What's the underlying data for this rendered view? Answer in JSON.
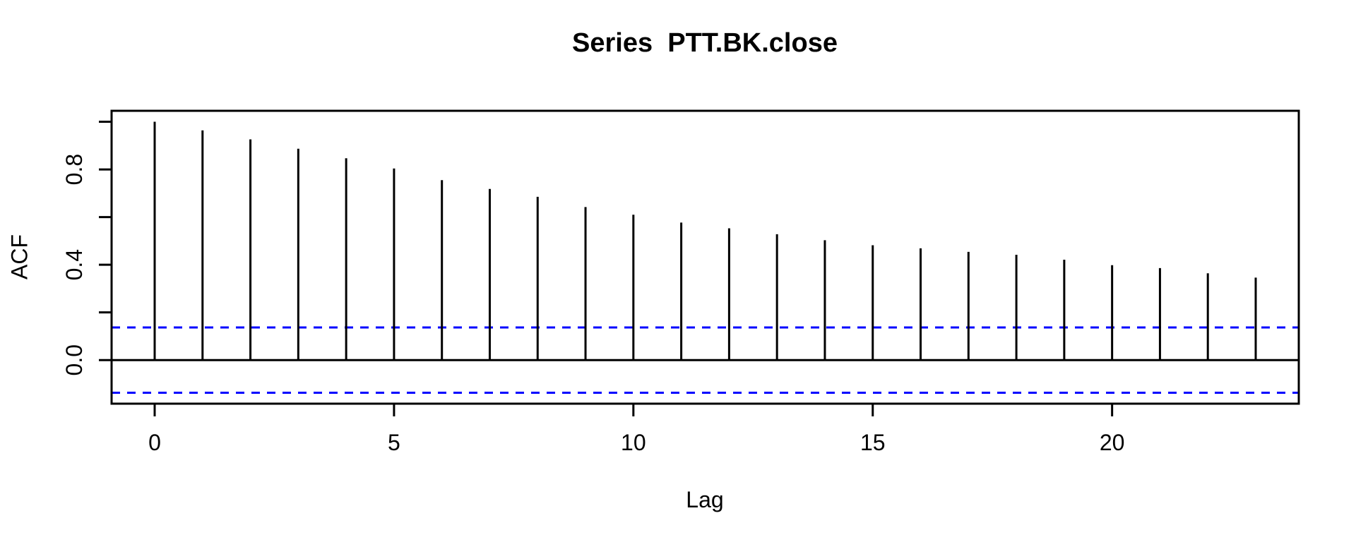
{
  "title": "Series  PTT.BK.close",
  "axes": {
    "xlabel": "Lag",
    "ylabel": "ACF"
  },
  "colors": {
    "stem": "#000000",
    "axis": "#000000",
    "text": "#000000",
    "confidence_line": "#0000ff",
    "background": "#ffffff"
  },
  "chart_data": {
    "type": "bar",
    "subtype": "acf-stem-plot",
    "title": "Series  PTT.BK.close",
    "xlabel": "Lag",
    "ylabel": "ACF",
    "x": [
      0,
      1,
      2,
      3,
      4,
      5,
      6,
      7,
      8,
      9,
      10,
      11,
      12,
      13,
      14,
      15,
      16,
      17,
      18,
      19,
      20,
      21,
      22,
      23
    ],
    "values": [
      1.0,
      0.964,
      0.926,
      0.887,
      0.847,
      0.804,
      0.755,
      0.718,
      0.685,
      0.642,
      0.61,
      0.577,
      0.553,
      0.528,
      0.503,
      0.482,
      0.469,
      0.454,
      0.442,
      0.421,
      0.398,
      0.386,
      0.364,
      0.346
    ],
    "baseline": 0,
    "confidence_upper": 0.137,
    "confidence_lower": -0.137,
    "confidence_style": "dashed",
    "xticks": [
      0,
      5,
      10,
      15,
      20
    ],
    "xtick_labels": [
      "0",
      "5",
      "10",
      "15",
      "20"
    ],
    "yticks_all": [
      0.0,
      0.2,
      0.4,
      0.6,
      0.8,
      1.0
    ],
    "yticks_labeled": [
      0.0,
      0.4,
      0.8
    ],
    "ytick_labels": [
      "0.0",
      "0.4",
      "0.8"
    ],
    "xlim": [
      -0.9,
      23.9
    ],
    "ylim": [
      -0.183,
      1.046
    ],
    "grid": false,
    "legend": null
  }
}
